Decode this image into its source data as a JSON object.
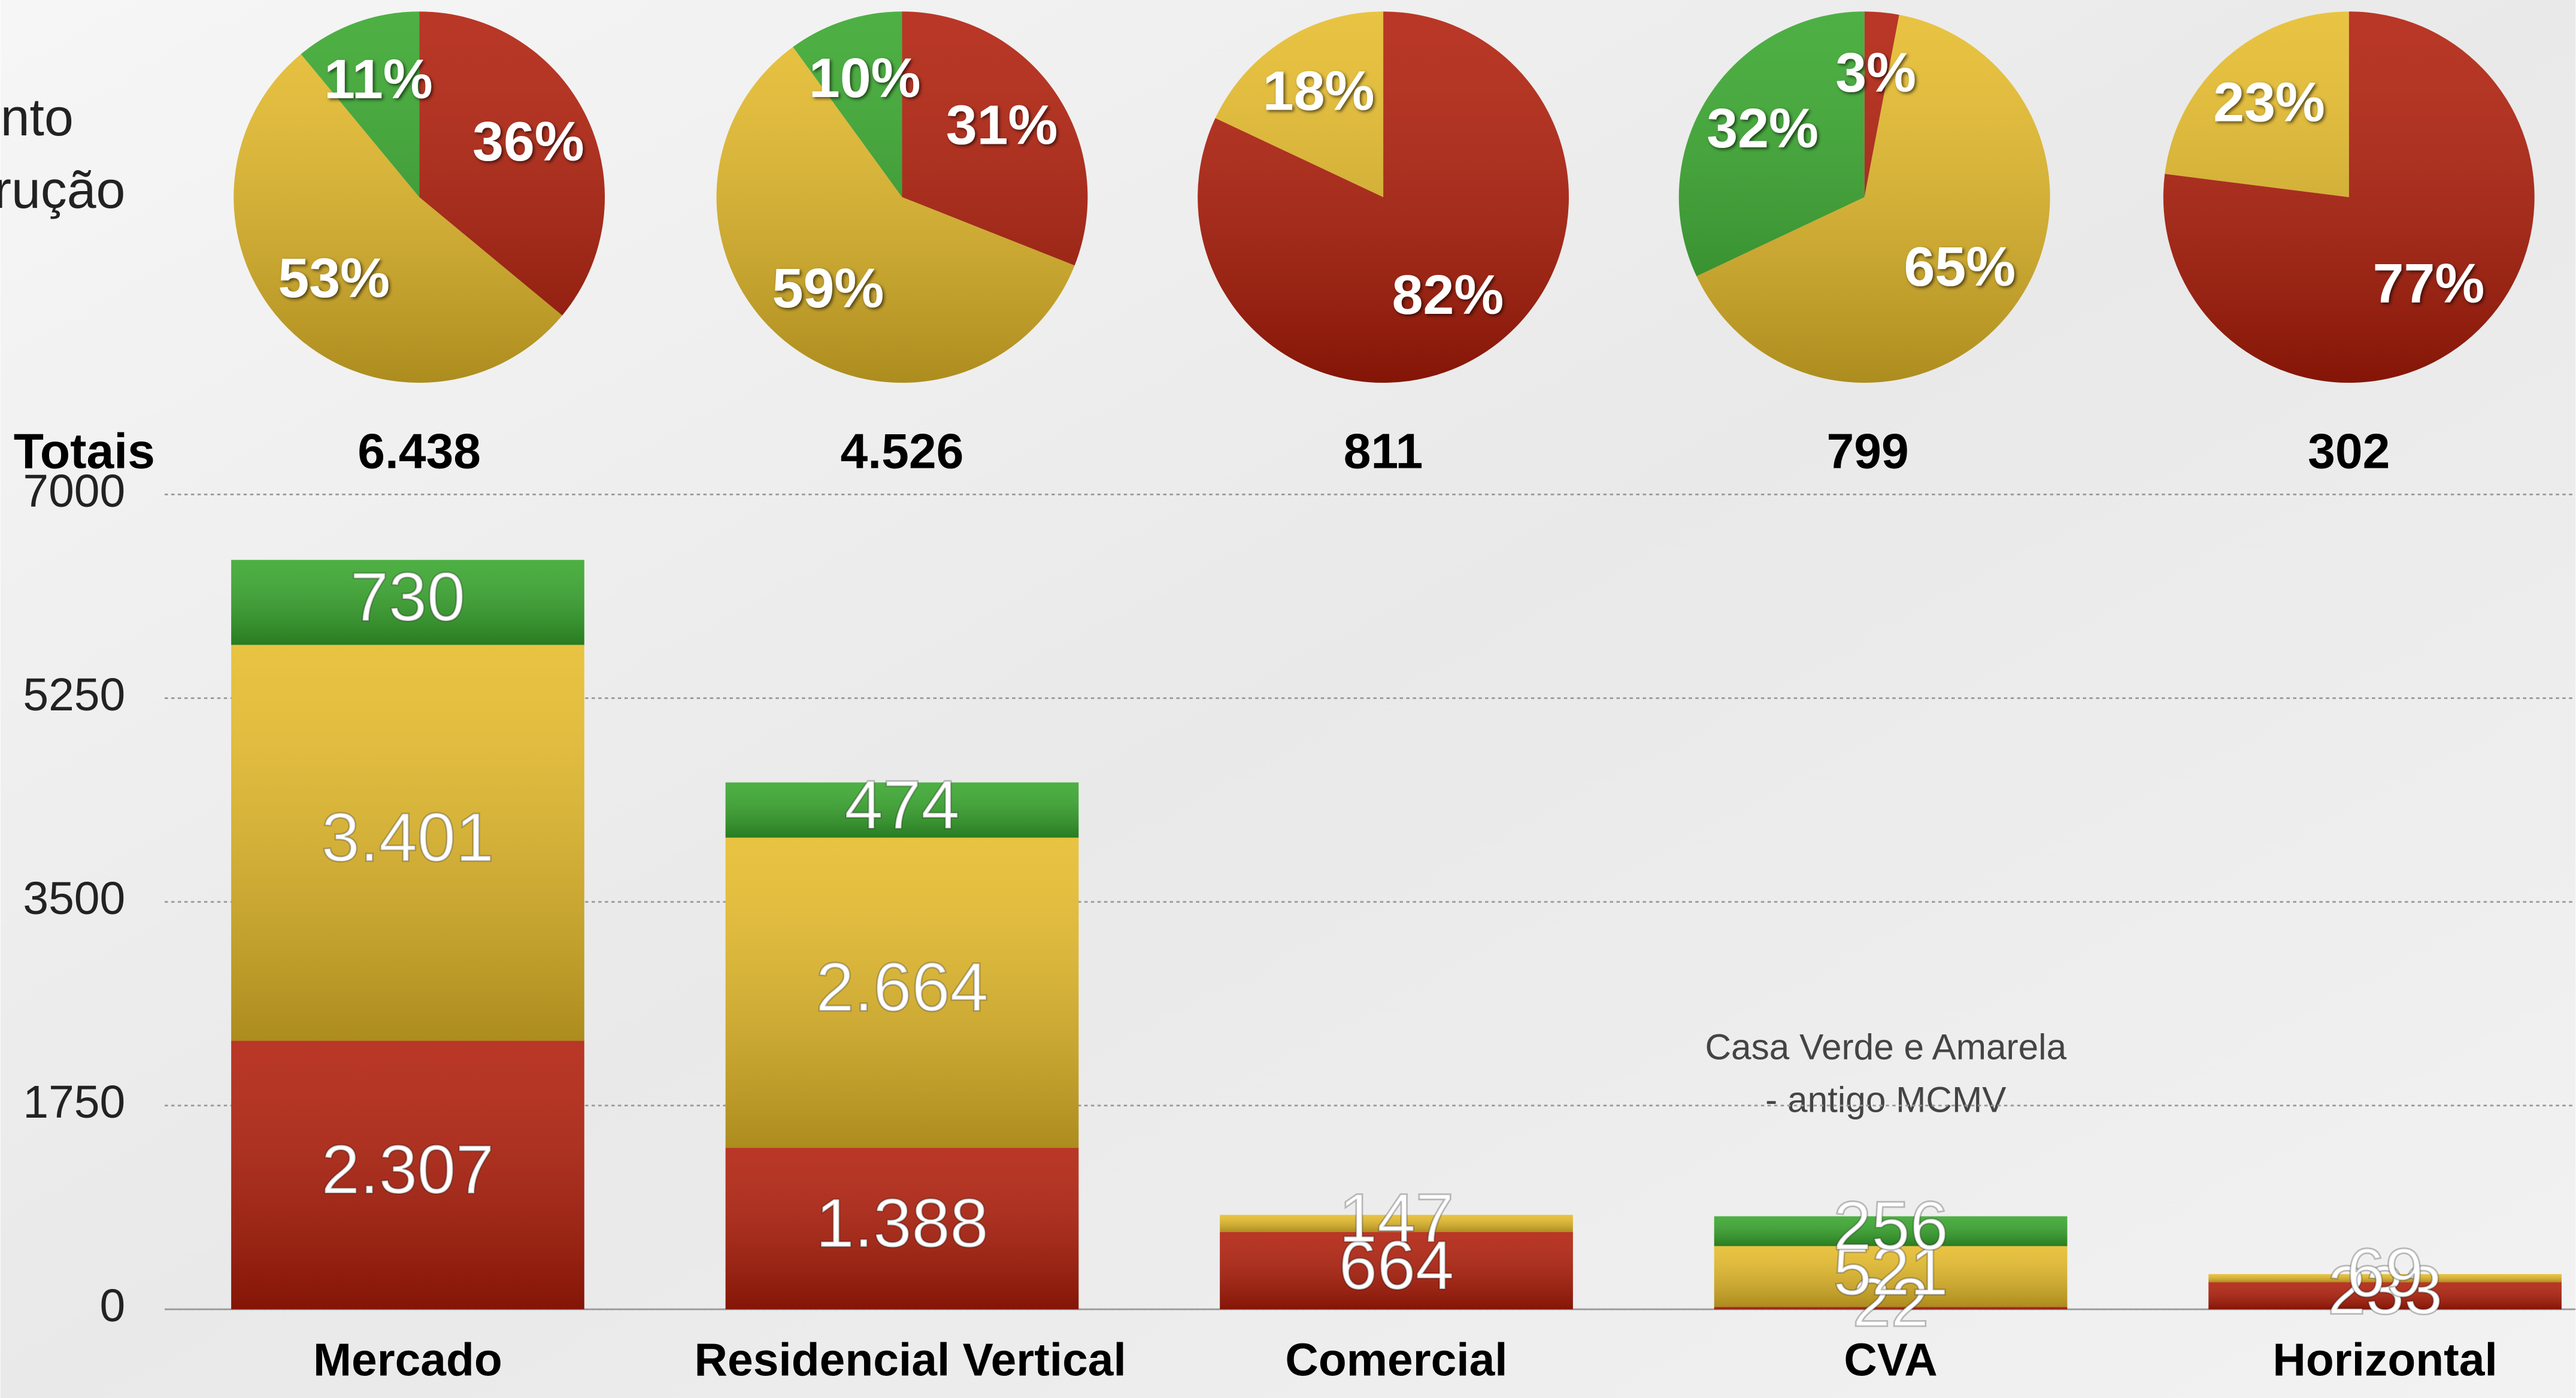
{
  "chart_data": [
    {
      "type": "bar",
      "left_texts": [
        "nto",
        "rução"
      ],
      "categories": [
        "Mercado",
        "Residencial Vertical",
        "Comercial",
        "CVA",
        "Horizontal"
      ],
      "series": [
        {
          "color": "#b01c08",
          "values": [
            2307,
            1388,
            664,
            22,
            233
          ],
          "value_labels": [
            "2.307",
            "1.388",
            "664",
            "22",
            "233"
          ]
        },
        {
          "color": "#e6bb28",
          "values": [
            3401,
            2664,
            147,
            521,
            69
          ],
          "value_labels": [
            "3.401",
            "2.664",
            "147",
            "521",
            "69"
          ]
        },
        {
          "color": "#35a52a",
          "values": [
            730,
            474,
            null,
            256,
            null
          ],
          "value_labels": [
            "730",
            "474",
            null,
            "256",
            null
          ]
        }
      ],
      "totals": {
        "label": "Totais",
        "values": [
          6438,
          4526,
          811,
          799,
          302
        ],
        "value_labels": [
          "6.438",
          "4.526",
          "811",
          "799",
          "302"
        ]
      },
      "annotation": [
        "Casa Verde e Amarela",
        "- antigo MCMV"
      ],
      "ylim": [
        0,
        7000
      ],
      "yticks": [
        0,
        1750,
        3500,
        5250,
        7000
      ],
      "grid": true
    },
    {
      "type": "pie",
      "values": [
        36,
        53,
        11
      ],
      "value_labels": [
        "36%",
        "53%",
        "11%"
      ],
      "colors": [
        "#b01c08",
        "#e6bb28",
        "#35a52a"
      ]
    },
    {
      "type": "pie",
      "values": [
        31,
        59,
        10
      ],
      "value_labels": [
        "31%",
        "59%",
        "10%"
      ],
      "colors": [
        "#b01c08",
        "#e6bb28",
        "#35a52a"
      ]
    },
    {
      "type": "pie",
      "values": [
        82,
        18
      ],
      "value_labels": [
        "82%",
        "18%"
      ],
      "colors": [
        "#b01c08",
        "#e6bb28"
      ]
    },
    {
      "type": "pie",
      "values": [
        3,
        65,
        32
      ],
      "value_labels": [
        "3%",
        "65%",
        "32%"
      ],
      "colors": [
        "#b01c08",
        "#e6bb28",
        "#35a52a"
      ]
    },
    {
      "type": "pie",
      "values": [
        77,
        23
      ],
      "value_labels": [
        "77%",
        "23%"
      ],
      "colors": [
        "#b01c08",
        "#e6bb28"
      ]
    }
  ]
}
